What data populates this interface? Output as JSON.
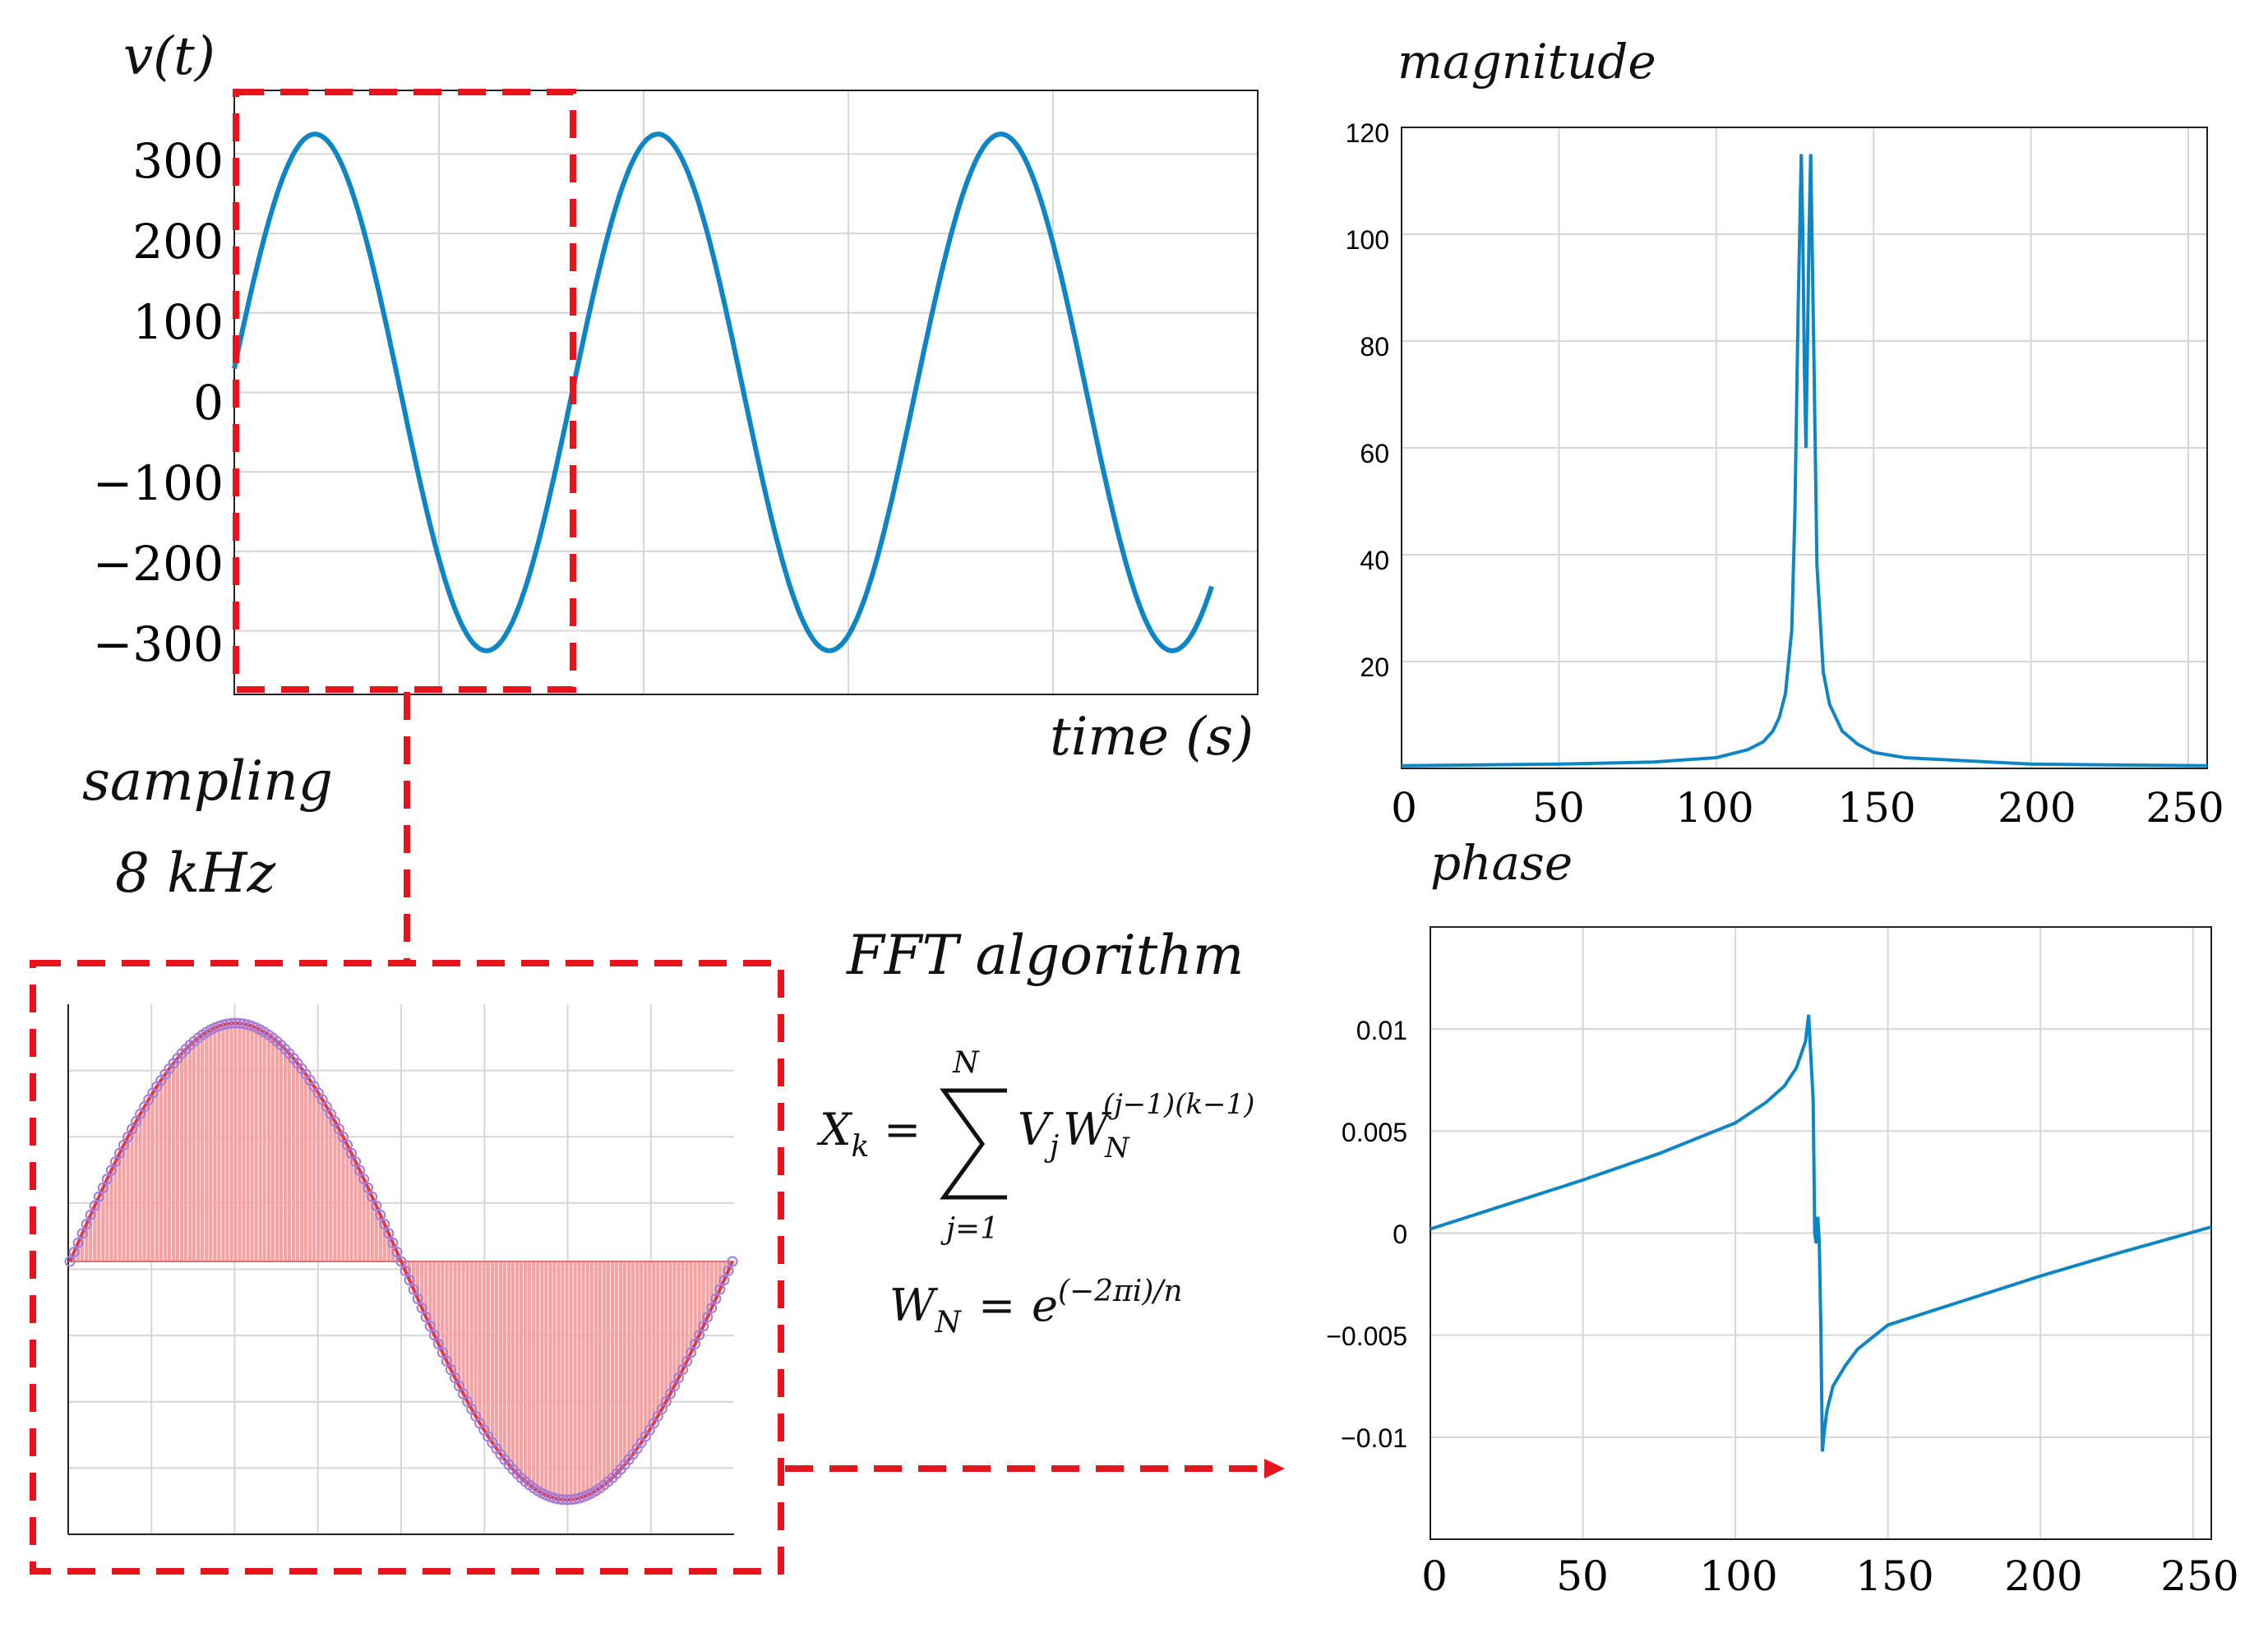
{
  "colors": {
    "signal": "#0e86c6",
    "grid": "#d6d6d6",
    "axis": "#222222",
    "dash": "#e8141c",
    "stem": "#f6a2a2",
    "stem_fill": "#fbd0d0",
    "marker": "#a57ad6",
    "text": "#111111"
  },
  "labels": {
    "vt": "v(t)",
    "time": "time (s)",
    "sampling": "sampling",
    "rate": "8 kHz",
    "fft": "FFT algorithm",
    "magnitude": "magnitude",
    "phase": "phase"
  },
  "formula": {
    "x": "X",
    "x_sub": "k",
    "eq": "=",
    "sum_top": "N",
    "sum_bottom": "j=1",
    "v": "V",
    "v_sub": "j",
    "w": "W",
    "w_sub": "N",
    "w_sup": "(j−1)(k−1)",
    "wn": "W",
    "wn_sub": "N",
    "wn_eq": "=",
    "e": "e",
    "e_sup": "(−2πi)/n"
  },
  "chart_data": [
    {
      "id": "signal",
      "type": "line",
      "title": "",
      "xlabel": "time (s)",
      "ylabel": "v(t)",
      "amplitude": 325,
      "cycles": 2.85,
      "start_offset": 30,
      "ylim": [
        -380,
        380
      ],
      "yticks": [
        -300,
        -200,
        -100,
        0,
        100,
        200,
        300
      ],
      "ytick_labels": [
        "−300",
        "−200",
        "−100",
        "0",
        "100",
        "200",
        "300"
      ],
      "grid": true
    },
    {
      "id": "sampled",
      "type": "scatter",
      "title": "",
      "samples": 160,
      "cycles": 1,
      "amplitude": 1,
      "ylim": [
        -1.1,
        1.1
      ],
      "grid": true
    },
    {
      "id": "magnitude",
      "type": "line",
      "title": "magnitude",
      "xlim": [
        0,
        256
      ],
      "ylim": [
        0,
        120
      ],
      "xticks": [
        0,
        50,
        100,
        150,
        200,
        250
      ],
      "xtick_labels": [
        "0",
        "50",
        "100",
        "150",
        "200",
        "250"
      ],
      "yticks": [
        20,
        40,
        60,
        80,
        100,
        120
      ],
      "ytick_labels": [
        "20",
        "40",
        "60",
        "80",
        "100",
        "120"
      ],
      "x": [
        0,
        50,
        80,
        100,
        110,
        115,
        118,
        120,
        122,
        124,
        125,
        126,
        127,
        127.5,
        128,
        128.5,
        129,
        129.5,
        130,
        131,
        132,
        134,
        136,
        140,
        145,
        150,
        160,
        200,
        256
      ],
      "y": [
        0.5,
        0.8,
        1.2,
        2,
        3.5,
        5,
        7,
        9.5,
        14,
        26,
        48,
        85,
        115,
        100,
        75,
        60,
        80,
        100,
        115,
        78,
        38,
        18,
        12,
        7,
        4.5,
        3,
        2,
        0.8,
        0.5
      ],
      "grid": true
    },
    {
      "id": "phase",
      "type": "line",
      "title": "phase",
      "xlim": [
        0,
        256
      ],
      "ylim": [
        -0.015,
        0.015
      ],
      "xticks": [
        0,
        50,
        100,
        150,
        200,
        250
      ],
      "xtick_labels": [
        "0",
        "50",
        "100",
        "150",
        "200",
        "250"
      ],
      "yticks": [
        -0.01,
        -0.005,
        0,
        0.005,
        0.01
      ],
      "ytick_labels": [
        "−0.01",
        "−0.005",
        "0",
        "0.005",
        "0.01"
      ],
      "x": [
        0,
        25,
        50,
        75,
        100,
        110,
        116,
        120,
        123,
        124,
        125.5,
        126,
        126.5,
        127,
        127.5,
        128,
        128.5,
        129,
        130,
        132,
        136,
        140,
        150,
        175,
        200,
        225,
        256
      ],
      "y": [
        0.0002,
        0.0014,
        0.0026,
        0.0039,
        0.0054,
        0.0064,
        0.0072,
        0.0081,
        0.0094,
        0.0107,
        0.0065,
        0.0,
        -0.0005,
        0.0008,
        -0.0004,
        -0.0045,
        -0.0107,
        -0.0099,
        -0.0087,
        -0.0075,
        -0.0065,
        -0.0057,
        -0.0045,
        -0.0033,
        -0.0021,
        -0.001,
        0.0003
      ],
      "grid": true
    }
  ]
}
